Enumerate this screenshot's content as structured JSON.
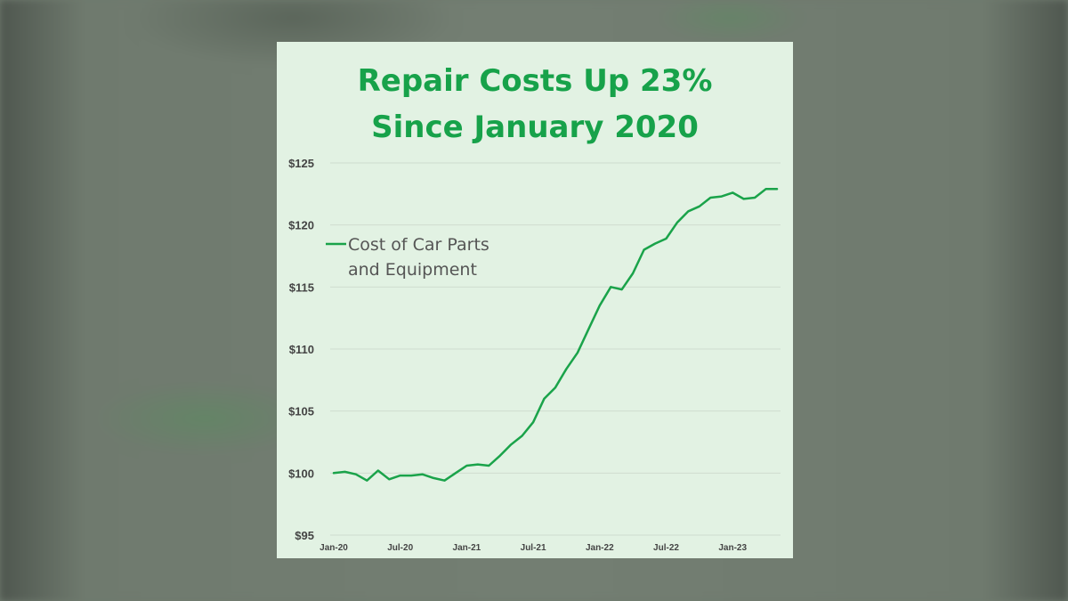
{
  "chart_data": {
    "type": "line",
    "title_lines": [
      "Repair Costs Up 23%",
      "Since January 2020"
    ],
    "xlabel": "",
    "ylabel": "",
    "ylim": [
      95,
      125
    ],
    "y_ticks": [
      125,
      120,
      115,
      110,
      105,
      100,
      95
    ],
    "y_tick_labels": [
      "$125",
      "$120",
      "$115",
      "$110",
      "$105",
      "$100",
      "$95"
    ],
    "x_tick_labels": [
      "Jan-20",
      "Jul-20",
      "Jan-21",
      "Jul-21",
      "Jan-22",
      "Jul-22",
      "Jan-23"
    ],
    "grid": true,
    "legend_position": "upper-left",
    "color": "#1aa34a",
    "series": [
      {
        "name": "Cost of Car Parts and Equipment",
        "legend_lines": [
          "Cost of Car Parts",
          "and Equipment"
        ],
        "x": [
          "2020-01",
          "2020-02",
          "2020-03",
          "2020-04",
          "2020-05",
          "2020-06",
          "2020-07",
          "2020-08",
          "2020-09",
          "2020-10",
          "2020-11",
          "2020-12",
          "2021-01",
          "2021-02",
          "2021-03",
          "2021-04",
          "2021-05",
          "2021-06",
          "2021-07",
          "2021-08",
          "2021-09",
          "2021-10",
          "2021-11",
          "2021-12",
          "2022-01",
          "2022-02",
          "2022-03",
          "2022-04",
          "2022-05",
          "2022-06",
          "2022-07",
          "2022-08",
          "2022-09",
          "2022-10",
          "2022-11",
          "2022-12",
          "2023-01",
          "2023-02",
          "2023-03",
          "2023-04",
          "2023-05"
        ],
        "values": [
          100.0,
          100.1,
          99.9,
          99.4,
          100.2,
          99.5,
          99.8,
          99.8,
          99.9,
          99.6,
          99.4,
          100.0,
          100.6,
          100.7,
          100.6,
          101.4,
          102.3,
          103.0,
          104.1,
          106.0,
          106.9,
          108.4,
          109.7,
          111.6,
          113.5,
          115.0,
          114.8,
          116.1,
          118.0,
          118.5,
          118.9,
          120.2,
          121.1,
          121.5,
          122.2,
          122.3,
          122.6,
          122.1,
          122.2,
          122.9,
          122.9
        ]
      }
    ]
  }
}
